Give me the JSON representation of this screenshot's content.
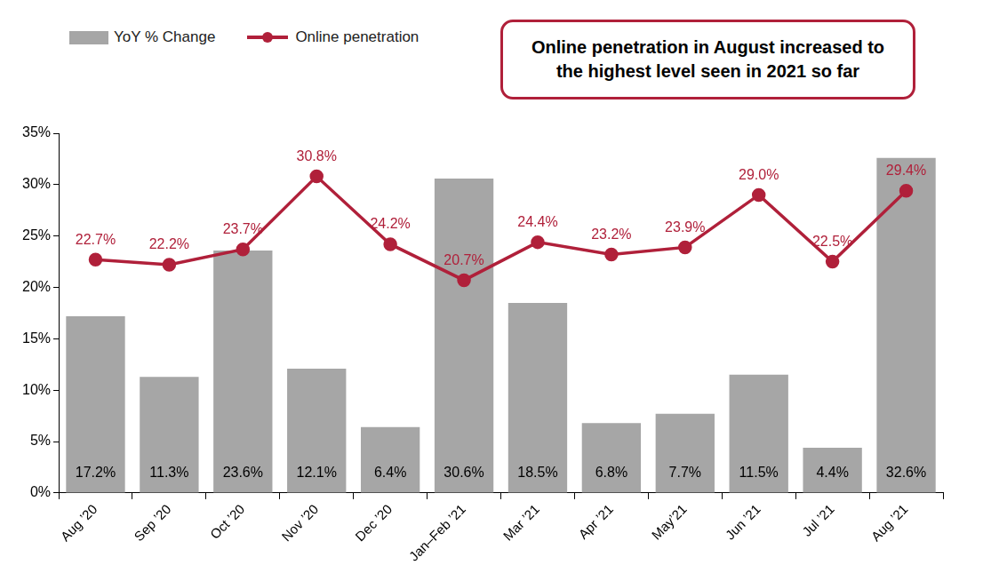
{
  "chart_data": {
    "type": "bar",
    "annotation": "Online penetration in August increased to the highest level seen in 2021 so far",
    "categories": [
      "Aug ’20",
      "Sep ’20",
      "Oct ’20",
      "Nov ’20",
      "Dec ’20",
      "Jan–Feb ’21",
      "Mar ’21",
      "Apr ’21",
      "May’21",
      "Jun ’21",
      "Jul ’21",
      "Aug ’21"
    ],
    "series": [
      {
        "name": "YoY % Change",
        "type": "bar",
        "color": "#a6a6a6",
        "values": [
          17.2,
          11.3,
          23.6,
          12.1,
          6.4,
          30.6,
          18.5,
          6.8,
          7.7,
          11.5,
          4.4,
          32.6
        ],
        "value_labels": [
          "17.2%",
          "11.3%",
          "23.6%",
          "12.1%",
          "6.4%",
          "30.6%",
          "18.5%",
          "6.8%",
          "7.7%",
          "11.5%",
          "4.4%",
          "32.6%"
        ]
      },
      {
        "name": "Online penetration",
        "type": "line",
        "color": "#b0203a",
        "marker": "circle",
        "values": [
          22.7,
          22.2,
          23.7,
          30.8,
          24.2,
          20.7,
          24.4,
          23.2,
          23.9,
          29.0,
          22.5,
          29.4
        ],
        "value_labels": [
          "22.7%",
          "22.2%",
          "23.7%",
          "30.8%",
          "24.2%",
          "20.7%",
          "24.4%",
          "23.2%",
          "23.9%",
          "29.0%",
          "22.5%",
          "29.4%"
        ]
      }
    ],
    "ylim": [
      0,
      35
    ],
    "yticks": [
      {
        "value": 0,
        "label": "0%"
      },
      {
        "value": 5,
        "label": "5%"
      },
      {
        "value": 10,
        "label": "10%"
      },
      {
        "value": 15,
        "label": "15%"
      },
      {
        "value": 20,
        "label": "20%"
      },
      {
        "value": 25,
        "label": "25%"
      },
      {
        "value": 30,
        "label": "30%"
      },
      {
        "value": 35,
        "label": "35%"
      }
    ],
    "grid": false,
    "legend": "top left",
    "data_labels": true
  }
}
